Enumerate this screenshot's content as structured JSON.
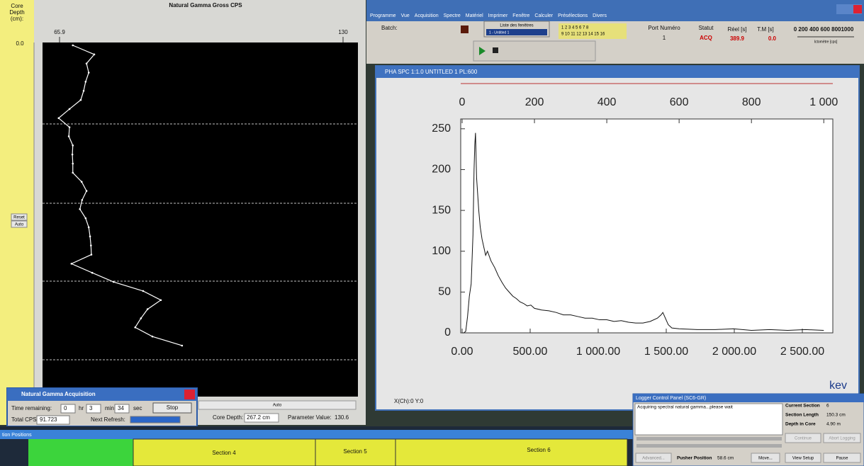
{
  "gamma_window": {
    "depth_label": [
      "Core",
      "Depth",
      "(cm):"
    ],
    "depth_start": "0.0",
    "reset_button": "Reset",
    "auto_button_side": "Auto",
    "auto_button_bottom": "Auto",
    "core_depth_label": "Core Depth:",
    "core_depth_value": "267.2 cm",
    "parameter_label": "Parameter Value:",
    "parameter_value": "130.6",
    "plot": {
      "type": "line",
      "title": "Natural Gamma Gross CPS",
      "color": "#ffffff",
      "xlim": [
        65.9,
        130
      ],
      "xticks": [
        65.9,
        130
      ],
      "values": [
        68.9,
        73.75,
        72.0,
        72.5,
        71.8,
        71.35,
        70.7,
        68.15,
        65.7,
        68.15,
        68.0,
        68.9,
        68.8,
        68.9,
        68.9,
        70.9,
        72.0,
        71.0,
        70.5,
        71.8,
        72.5,
        72.8,
        73.0,
        73.1,
        68.6,
        73.3,
        78.1,
        84.8,
        88.8,
        85.8,
        84.3,
        83.0,
        86.9,
        93.6
      ]
    }
  },
  "acquisition_dialog": {
    "title": "Natural Gamma Acquisition",
    "time_label": "Time remaining:",
    "hours": "0",
    "hr": "hr",
    "minutes": "3",
    "min": "min",
    "seconds": "34",
    "sec": "sec",
    "stop_button": "Stop",
    "total_label": "Total CPS:",
    "total_value": "91.723",
    "refresh_label": "Next Refresh:"
  },
  "menu": [
    "Programme",
    "Vue",
    "Acquisition",
    "Spectre",
    "Matériel",
    "Imprimer",
    "Fenêtre",
    "Calculer",
    "Présélections",
    "Divers"
  ],
  "toolbar": {
    "batch": "Batch:",
    "window_list": "Liste des fenêtres",
    "window_selected": "1 - Untitled 1",
    "numbers_row1": "1  2  3  4  5  6  7  8",
    "numbers_row2": "9  10  11  12  13  14  15  16",
    "port_label": "Port Numéro",
    "port_value": "1",
    "status_label": "Statut",
    "status_value": "ACQ",
    "real_label": "Réel [s]",
    "real_value": "389.9",
    "tm_label": "T.M [s]",
    "tm_value": "0.0",
    "meter_scale": "0  200 400 600 8001000",
    "meter_label": "Ictomètre [cps]"
  },
  "spectrum_window": {
    "title": "PHA SPC 1:1.0  UNTITLED 1  PL:600",
    "status": "X(Ch):0  Y:0",
    "plot": {
      "type": "line",
      "color": "#111111",
      "x": [
        0,
        5,
        10,
        15,
        20,
        25,
        30,
        33,
        35,
        37,
        40,
        43,
        46,
        50,
        55,
        60,
        65,
        70,
        80,
        90,
        100,
        110,
        120,
        130,
        140,
        150,
        160,
        170,
        180,
        190,
        200,
        220,
        240,
        260,
        280,
        300,
        320,
        340,
        360,
        380,
        400,
        420,
        440,
        460,
        480,
        500,
        520,
        540,
        550,
        555,
        560,
        570,
        580,
        600,
        650,
        700,
        750,
        800,
        850,
        900,
        950,
        1000
      ],
      "values": [
        0,
        0,
        2,
        20,
        45,
        60,
        120,
        200,
        230,
        245,
        190,
        170,
        150,
        130,
        115,
        105,
        95,
        100,
        88,
        80,
        70,
        62,
        55,
        50,
        45,
        42,
        38,
        36,
        33,
        34,
        30,
        28,
        27,
        25,
        22,
        22,
        20,
        18,
        18,
        16,
        16,
        14,
        15,
        13,
        12,
        12,
        14,
        18,
        22,
        25,
        20,
        10,
        6,
        5,
        4,
        4,
        5,
        3,
        4,
        3,
        4,
        3
      ],
      "xlim": [
        0,
        1025
      ],
      "xticks": [
        0,
        200,
        400,
        600,
        800,
        {
          "value": 1000,
          "label": "1 000"
        }
      ],
      "ylim": [
        0,
        262
      ],
      "yticks": [
        0,
        50,
        100,
        150,
        200,
        250
      ],
      "x2lim": [
        0,
        2724
      ],
      "x2ticks": [
        {
          "value": 0,
          "label": "0.00"
        },
        {
          "value": 500,
          "label": "500.00"
        },
        {
          "value": 1000,
          "label": "1 000.00"
        },
        {
          "value": 1500,
          "label": "1 500.00"
        },
        {
          "value": 2000,
          "label": "2 000.00"
        },
        {
          "value": 2500,
          "label": "2 500.00"
        }
      ],
      "x2_label": "kev"
    }
  },
  "positions_bar": {
    "title": "tion Positions",
    "sections": [
      "Section 4",
      "Section 5",
      "Section 6"
    ]
  },
  "logger_panel": {
    "title": "Logger Control Panel (SC6-GR)",
    "message": "Acquiring spectral natural gamma...please wait",
    "current_section_label": "Current Section",
    "current_section_value": "6",
    "section_length_label": "Section Length",
    "section_length_value": "150.3 cm",
    "depth_label": "Depth in Core",
    "depth_value": "4.90 m",
    "continue_button": "Continue",
    "abort_button": "Abort Logging",
    "advanced_button": "Advanced...",
    "pusher_label": "Pusher Position",
    "pusher_value": "58.6 cm",
    "move_button": "Move...",
    "view_setup_button": "View Setup",
    "pause_button": "Pause"
  }
}
